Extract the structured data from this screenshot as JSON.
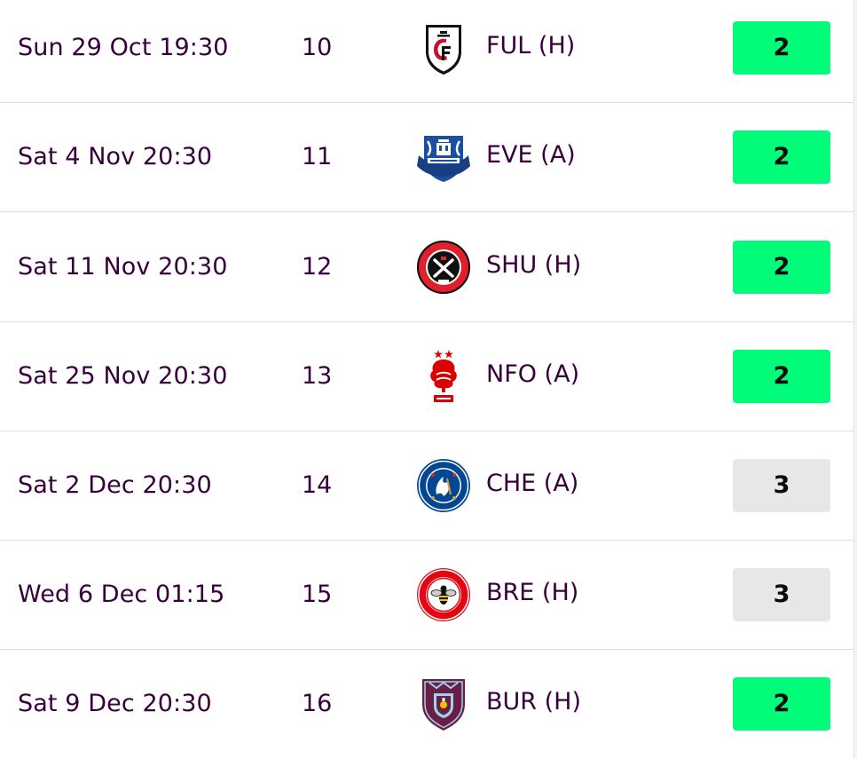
{
  "colors": {
    "text": "#37003c",
    "fdr_2": "#01fc7a",
    "fdr_3": "#e7e7e7",
    "row_divider": "#dddddd"
  },
  "fixtures": [
    {
      "kickoff": "Sun 29 Oct 19:30",
      "gameweek": "10",
      "crest": "fulham-crest-icon",
      "opponent": "FUL (H)",
      "difficulty": "2"
    },
    {
      "kickoff": "Sat 4 Nov 20:30",
      "gameweek": "11",
      "crest": "everton-crest-icon",
      "opponent": "EVE (A)",
      "difficulty": "2"
    },
    {
      "kickoff": "Sat 11 Nov 20:30",
      "gameweek": "12",
      "crest": "sheffield-united-crest-icon",
      "opponent": "SHU (H)",
      "difficulty": "2"
    },
    {
      "kickoff": "Sat 25 Nov 20:30",
      "gameweek": "13",
      "crest": "nottingham-forest-crest-icon",
      "opponent": "NFO (A)",
      "difficulty": "2"
    },
    {
      "kickoff": "Sat 2 Dec 20:30",
      "gameweek": "14",
      "crest": "chelsea-crest-icon",
      "opponent": "CHE (A)",
      "difficulty": "3"
    },
    {
      "kickoff": "Wed 6 Dec 01:15",
      "gameweek": "15",
      "crest": "brentford-crest-icon",
      "opponent": "BRE (H)",
      "difficulty": "3"
    },
    {
      "kickoff": "Sat 9 Dec 20:30",
      "gameweek": "16",
      "crest": "burnley-crest-icon",
      "opponent": "BUR (H)",
      "difficulty": "2"
    }
  ]
}
